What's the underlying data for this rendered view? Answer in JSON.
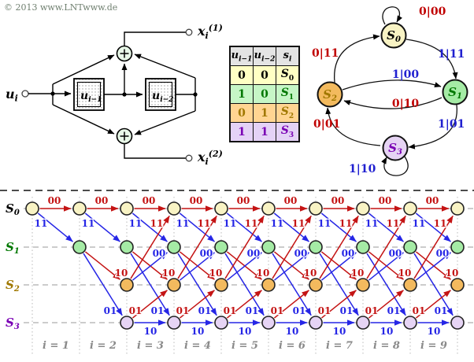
{
  "copyright": "© 2013 www.LNTwww.de",
  "colors": {
    "red": "#C41414",
    "blue": "#2626E6",
    "label_red": "#C00000",
    "label_blue": "#2020D0",
    "grid_dash_gray": "#999999",
    "grid_dot_gray": "#b8b8b8",
    "time_label_gray": "#8a8a8a",
    "table_header_bg": "#e4e4e4",
    "adder_fill": "#e8f8e8"
  },
  "encoder": {
    "input_label": {
      "base": "u",
      "sub": "i"
    },
    "registers": [
      {
        "base": "u",
        "sub": "i−1"
      },
      {
        "base": "u",
        "sub": "i−2"
      }
    ],
    "outputs": [
      {
        "base": "x",
        "sub": "i",
        "sup": "(1)"
      },
      {
        "base": "x",
        "sub": "i",
        "sup": "(2)"
      }
    ]
  },
  "state_table": {
    "headers": [
      {
        "base": "u",
        "sub": "i−1"
      },
      {
        "base": "u",
        "sub": "i−2"
      },
      {
        "base": "s",
        "sub": "i"
      }
    ],
    "rows": [
      {
        "cells": [
          "0",
          "0"
        ],
        "state": {
          "base": "S",
          "sub": "0"
        },
        "bg": "#FFFFC4",
        "fg": "#000000"
      },
      {
        "cells": [
          "1",
          "0"
        ],
        "state": {
          "base": "S",
          "sub": "1"
        },
        "bg": "#C6F6C6",
        "fg": "#007700"
      },
      {
        "cells": [
          "0",
          "1"
        ],
        "state": {
          "base": "S",
          "sub": "2"
        },
        "bg": "#FFD592",
        "fg": "#A07800"
      },
      {
        "cells": [
          "1",
          "1"
        ],
        "state": {
          "base": "S",
          "sub": "3"
        },
        "bg": "#E4D2F6",
        "fg": "#7A00B4"
      }
    ]
  },
  "state_diagram": {
    "nodes": [
      {
        "id": "s0",
        "base": "S",
        "sub": "0",
        "fill": "#F8F3C4",
        "text": "#000000"
      },
      {
        "id": "s1",
        "base": "S",
        "sub": "1",
        "fill": "#A5EBA5",
        "text": "#007700"
      },
      {
        "id": "s2",
        "base": "S",
        "sub": "2",
        "fill": "#F3BA5E",
        "text": "#A07800"
      },
      {
        "id": "s3",
        "base": "S",
        "sub": "3",
        "fill": "#E6D4F4",
        "text": "#7A00B4"
      }
    ],
    "transitions": [
      {
        "from": "s0",
        "to": "s0",
        "label": "0|00",
        "input": 0
      },
      {
        "from": "s0",
        "to": "s1",
        "label": "1|11",
        "input": 1
      },
      {
        "from": "s2",
        "to": "s0",
        "label": "0|11",
        "input": 0
      },
      {
        "from": "s2",
        "to": "s1",
        "label": "1|00",
        "input": 1
      },
      {
        "from": "s1",
        "to": "s2",
        "label": "0|10",
        "input": 0
      },
      {
        "from": "s1",
        "to": "s3",
        "label": "1|01",
        "input": 1
      },
      {
        "from": "s3",
        "to": "s2",
        "label": "0|01",
        "input": 0
      },
      {
        "from": "s3",
        "to": "s3",
        "label": "1|10",
        "input": 1
      }
    ]
  },
  "trellis": {
    "states": [
      {
        "base": "S",
        "sub": "0",
        "fill": "#F8F3C4",
        "text": "#000000",
        "first_col": 0
      },
      {
        "base": "S",
        "sub": "1",
        "fill": "#A5EBA5",
        "text": "#007700",
        "first_col": 1
      },
      {
        "base": "S",
        "sub": "2",
        "fill": "#F3BA5E",
        "text": "#A07800",
        "first_col": 2
      },
      {
        "base": "S",
        "sub": "3",
        "fill": "#E6D4F4",
        "text": "#7A00B4",
        "first_col": 2
      }
    ],
    "columns": 10,
    "transitions": [
      {
        "from": 0,
        "to": 0,
        "label": "00",
        "input": 0,
        "first_gap": 0
      },
      {
        "from": 0,
        "to": 1,
        "label": "11",
        "input": 1,
        "first_gap": 0
      },
      {
        "from": 1,
        "to": 2,
        "label": "10",
        "input": 0,
        "first_gap": 1
      },
      {
        "from": 1,
        "to": 3,
        "label": "01",
        "input": 1,
        "first_gap": 1
      },
      {
        "from": 2,
        "to": 0,
        "label": "11",
        "input": 0,
        "first_gap": 2
      },
      {
        "from": 2,
        "to": 1,
        "label": "00",
        "input": 1,
        "first_gap": 2
      },
      {
        "from": 3,
        "to": 2,
        "label": "01",
        "input": 0,
        "first_gap": 2
      },
      {
        "from": 3,
        "to": 3,
        "label": "10",
        "input": 1,
        "first_gap": 2
      }
    ],
    "time_labels": [
      "i = 1",
      "i = 2",
      "i = 3",
      "i = 4",
      "i = 5",
      "i = 6",
      "i = 7",
      "i = 8",
      "i = 9"
    ]
  }
}
